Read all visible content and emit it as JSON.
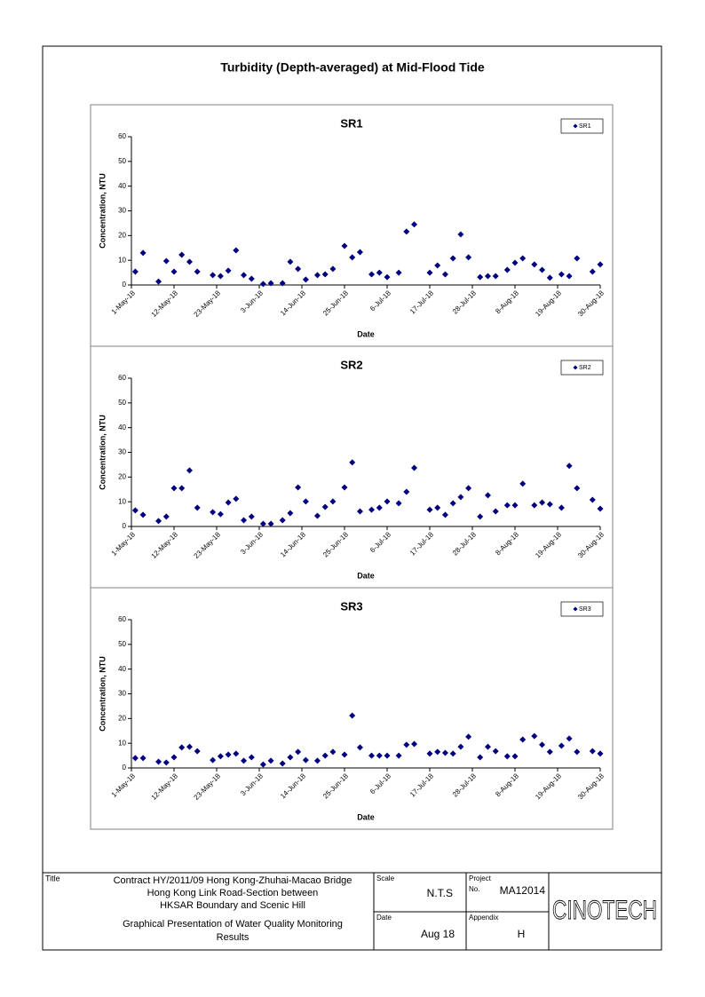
{
  "page_title": "Turbidity (Depth-averaged) at Mid-Flood Tide",
  "chart_data": [
    {
      "type": "scatter",
      "title": "SR1",
      "xlabel": "Date",
      "ylabel": "Concentration, NTU",
      "legend": "upper right",
      "x": [
        "2018-05-02",
        "2018-05-04",
        "2018-05-08",
        "2018-05-10",
        "2018-05-12",
        "2018-05-14",
        "2018-05-16",
        "2018-05-18",
        "2018-05-22",
        "2018-05-24",
        "2018-05-26",
        "2018-05-28",
        "2018-05-30",
        "2018-06-01",
        "2018-06-04",
        "2018-06-06",
        "2018-06-09",
        "2018-06-11",
        "2018-06-13",
        "2018-06-15",
        "2018-06-18",
        "2018-06-20",
        "2018-06-22",
        "2018-06-25",
        "2018-06-27",
        "2018-06-29",
        "2018-07-02",
        "2018-07-04",
        "2018-07-06",
        "2018-07-09",
        "2018-07-11",
        "2018-07-13",
        "2018-07-17",
        "2018-07-19",
        "2018-07-21",
        "2018-07-23",
        "2018-07-25",
        "2018-07-27",
        "2018-07-30",
        "2018-08-01",
        "2018-08-03",
        "2018-08-06",
        "2018-08-08",
        "2018-08-10",
        "2018-08-13",
        "2018-08-15",
        "2018-08-17",
        "2018-08-20",
        "2018-08-22",
        "2018-08-24",
        "2018-08-28",
        "2018-08-30"
      ],
      "series": [
        {
          "name": "SR1",
          "color": "#000080",
          "values": [
            5.4,
            13,
            1.4,
            9.7,
            5.4,
            12.2,
            9.4,
            5.4,
            4,
            3.6,
            5.8,
            14,
            4,
            2.5,
            0.4,
            0.7,
            0.7,
            9.4,
            6.5,
            2.2,
            4,
            4.3,
            6.5,
            15.8,
            11.2,
            13.3,
            4.3,
            5,
            3.2,
            5,
            21.6,
            24.5,
            5,
            7.9,
            4.3,
            10.8,
            20.5,
            11.2,
            3.2,
            3.6,
            3.6,
            6.1,
            9,
            10.8,
            8.3,
            6.1,
            2.9,
            4.3,
            3.6,
            10.8,
            5.4,
            8.3
          ]
        }
      ],
      "xlim": [
        "2018-05-01",
        "2018-08-30"
      ],
      "xticks": [
        {
          "value": "2018-05-01",
          "label": "1-May-18"
        },
        {
          "value": "2018-05-12",
          "label": "12-May-18"
        },
        {
          "value": "2018-05-23",
          "label": "23-May-18"
        },
        {
          "value": "2018-06-03",
          "label": "3-Jun-18"
        },
        {
          "value": "2018-06-14",
          "label": "14-Jun-18"
        },
        {
          "value": "2018-06-25",
          "label": "25-Jun-18"
        },
        {
          "value": "2018-07-06",
          "label": "6-Jul-18"
        },
        {
          "value": "2018-07-17",
          "label": "17-Jul-18"
        },
        {
          "value": "2018-07-28",
          "label": "28-Jul-18"
        },
        {
          "value": "2018-08-08",
          "label": "8-Aug-18"
        },
        {
          "value": "2018-08-19",
          "label": "19-Aug-18"
        },
        {
          "value": "2018-08-30",
          "label": "30-Aug-18"
        }
      ],
      "ylim": [
        0,
        60
      ],
      "yticks": [
        0,
        10,
        20,
        30,
        40,
        50,
        60
      ]
    },
    {
      "type": "scatter",
      "title": "SR2",
      "xlabel": "Date",
      "ylabel": "Concentration, NTU",
      "legend": "upper right",
      "x": [
        "2018-05-02",
        "2018-05-04",
        "2018-05-08",
        "2018-05-10",
        "2018-05-12",
        "2018-05-14",
        "2018-05-16",
        "2018-05-18",
        "2018-05-22",
        "2018-05-24",
        "2018-05-26",
        "2018-05-28",
        "2018-05-30",
        "2018-06-01",
        "2018-06-04",
        "2018-06-06",
        "2018-06-09",
        "2018-06-11",
        "2018-06-13",
        "2018-06-15",
        "2018-06-18",
        "2018-06-20",
        "2018-06-22",
        "2018-06-25",
        "2018-06-27",
        "2018-06-29",
        "2018-07-02",
        "2018-07-04",
        "2018-07-06",
        "2018-07-09",
        "2018-07-11",
        "2018-07-13",
        "2018-07-17",
        "2018-07-19",
        "2018-07-21",
        "2018-07-23",
        "2018-07-25",
        "2018-07-27",
        "2018-07-30",
        "2018-08-01",
        "2018-08-03",
        "2018-08-06",
        "2018-08-08",
        "2018-08-10",
        "2018-08-13",
        "2018-08-15",
        "2018-08-17",
        "2018-08-20",
        "2018-08-22",
        "2018-08-24",
        "2018-08-28",
        "2018-08-30"
      ],
      "series": [
        {
          "name": "SR2",
          "color": "#000080",
          "values": [
            6.5,
            4.7,
            2.2,
            4,
            15.5,
            15.5,
            22.7,
            7.6,
            5.8,
            5,
            9.7,
            11.2,
            2.5,
            4,
            1.1,
            1.1,
            2.5,
            5.4,
            15.8,
            10.1,
            4.3,
            7.9,
            10.1,
            15.8,
            25.9,
            6.1,
            6.8,
            7.6,
            10.1,
            9.4,
            14,
            23.7,
            6.8,
            7.6,
            4.7,
            9.4,
            11.9,
            15.5,
            4,
            12.6,
            6.1,
            8.6,
            8.6,
            17.3,
            8.6,
            9.7,
            9,
            7.6,
            24.5,
            15.5,
            10.8,
            7.2
          ]
        }
      ],
      "xlim": [
        "2018-05-01",
        "2018-08-30"
      ],
      "xticks": [
        {
          "value": "2018-05-01",
          "label": "1-May-18"
        },
        {
          "value": "2018-05-12",
          "label": "12-May-18"
        },
        {
          "value": "2018-05-23",
          "label": "23-May-18"
        },
        {
          "value": "2018-06-03",
          "label": "3-Jun-18"
        },
        {
          "value": "2018-06-14",
          "label": "14-Jun-18"
        },
        {
          "value": "2018-06-25",
          "label": "25-Jun-18"
        },
        {
          "value": "2018-07-06",
          "label": "6-Jul-18"
        },
        {
          "value": "2018-07-17",
          "label": "17-Jul-18"
        },
        {
          "value": "2018-07-28",
          "label": "28-Jul-18"
        },
        {
          "value": "2018-08-08",
          "label": "8-Aug-18"
        },
        {
          "value": "2018-08-19",
          "label": "19-Aug-18"
        },
        {
          "value": "2018-08-30",
          "label": "30-Aug-18"
        }
      ],
      "ylim": [
        0,
        60
      ],
      "yticks": [
        0,
        10,
        20,
        30,
        40,
        50,
        60
      ]
    },
    {
      "type": "scatter",
      "title": "SR3",
      "xlabel": "Date",
      "ylabel": "Concentration, NTU",
      "legend": "upper right",
      "x": [
        "2018-05-02",
        "2018-05-04",
        "2018-05-08",
        "2018-05-10",
        "2018-05-12",
        "2018-05-14",
        "2018-05-16",
        "2018-05-18",
        "2018-05-22",
        "2018-05-24",
        "2018-05-26",
        "2018-05-28",
        "2018-05-30",
        "2018-06-01",
        "2018-06-04",
        "2018-06-06",
        "2018-06-09",
        "2018-06-11",
        "2018-06-13",
        "2018-06-15",
        "2018-06-18",
        "2018-06-20",
        "2018-06-22",
        "2018-06-25",
        "2018-06-27",
        "2018-06-29",
        "2018-07-02",
        "2018-07-04",
        "2018-07-06",
        "2018-07-09",
        "2018-07-11",
        "2018-07-13",
        "2018-07-17",
        "2018-07-19",
        "2018-07-21",
        "2018-07-23",
        "2018-07-25",
        "2018-07-27",
        "2018-07-30",
        "2018-08-01",
        "2018-08-03",
        "2018-08-06",
        "2018-08-08",
        "2018-08-10",
        "2018-08-13",
        "2018-08-15",
        "2018-08-17",
        "2018-08-20",
        "2018-08-22",
        "2018-08-24",
        "2018-08-28",
        "2018-08-30"
      ],
      "series": [
        {
          "name": "SR3",
          "color": "#000080",
          "values": [
            4,
            4,
            2.5,
            2.2,
            4.3,
            8.3,
            8.6,
            6.8,
            3.2,
            4.7,
            5.4,
            5.8,
            2.9,
            4.3,
            1.4,
            2.9,
            1.8,
            4.3,
            6.5,
            3.2,
            2.9,
            5,
            6.5,
            5.4,
            21.2,
            8.3,
            5,
            5,
            5,
            5,
            9.4,
            9.7,
            5.8,
            6.5,
            6.1,
            5.8,
            8.6,
            12.6,
            4.3,
            8.6,
            6.8,
            4.7,
            4.7,
            11.5,
            12.9,
            9.4,
            6.5,
            9,
            11.9,
            6.5,
            6.8,
            5.8
          ]
        }
      ],
      "xlim": [
        "2018-05-01",
        "2018-08-30"
      ],
      "xticks": [
        {
          "value": "2018-05-01",
          "label": "1-May-18"
        },
        {
          "value": "2018-05-12",
          "label": "12-May-18"
        },
        {
          "value": "2018-05-23",
          "label": "23-May-18"
        },
        {
          "value": "2018-06-03",
          "label": "3-Jun-18"
        },
        {
          "value": "2018-06-14",
          "label": "14-Jun-18"
        },
        {
          "value": "2018-06-25",
          "label": "25-Jun-18"
        },
        {
          "value": "2018-07-06",
          "label": "6-Jul-18"
        },
        {
          "value": "2018-07-17",
          "label": "17-Jul-18"
        },
        {
          "value": "2018-07-28",
          "label": "28-Jul-18"
        },
        {
          "value": "2018-08-08",
          "label": "8-Aug-18"
        },
        {
          "value": "2018-08-19",
          "label": "19-Aug-18"
        },
        {
          "value": "2018-08-30",
          "label": "30-Aug-18"
        }
      ],
      "ylim": [
        0,
        60
      ],
      "yticks": [
        0,
        10,
        20,
        30,
        40,
        50,
        60
      ]
    }
  ],
  "title_block": {
    "title_label": "Title",
    "title_lines": [
      "Contract HY/2011/09 Hong Kong-Zhuhai-Macao Bridge",
      "Hong Kong Link Road-Section between",
      "HKSAR Boundary and Scenic Hill"
    ],
    "description_lines": [
      "Graphical Presentation of Water Quality Monitoring",
      "Results"
    ],
    "scale_label": "Scale",
    "scale": "N.T.S",
    "date_label": "Date",
    "date": "Aug 18",
    "project_label": "Project",
    "project_no_label": "No.",
    "project_no": "MA12014",
    "appendix_label": "Appendix",
    "appendix": "H",
    "logo": "CINOTECH"
  }
}
